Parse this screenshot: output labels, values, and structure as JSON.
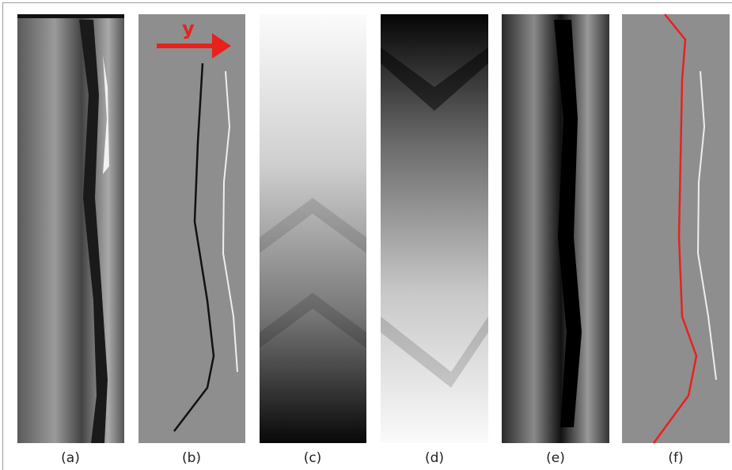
{
  "panels": [
    {
      "label": "(a)"
    },
    {
      "label": "(b)"
    },
    {
      "label": "(c)"
    },
    {
      "label": "(d)"
    },
    {
      "label": "(e)"
    },
    {
      "label": "(f)"
    }
  ],
  "arrow_label": "y"
}
